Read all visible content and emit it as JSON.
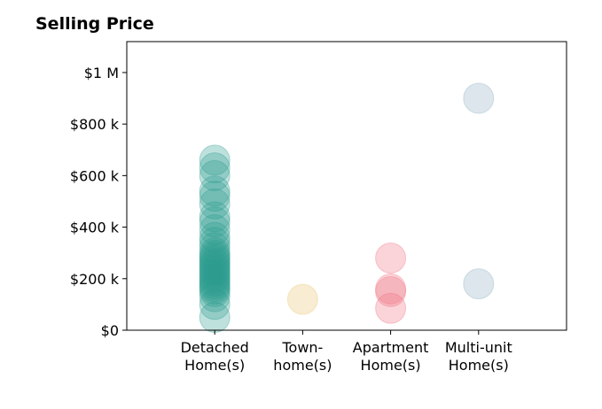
{
  "chart_data": {
    "type": "scatter",
    "title": "Selling Price",
    "xlabel": "",
    "ylabel": "",
    "categories": [
      [
        "Detached",
        "Home(s)"
      ],
      [
        "Town-",
        "home(s)"
      ],
      [
        "Apartment",
        "Home(s)"
      ],
      [
        "Multi-unit",
        "Home(s)"
      ]
    ],
    "y_ticks": [
      {
        "value": 0,
        "label": "$0"
      },
      {
        "value": 200000,
        "label": "$200 k"
      },
      {
        "value": 400000,
        "label": "$400 k"
      },
      {
        "value": 600000,
        "label": "$600 k"
      },
      {
        "value": 800000,
        "label": "$800 k"
      },
      {
        "value": 1000000,
        "label": "$1 M"
      }
    ],
    "ylim": [
      0,
      1120000
    ],
    "xlim": [
      -1,
      4
    ],
    "grid": false,
    "colors": [
      "#2a9d8f",
      "#e9c46a",
      "#f07080",
      "#8aabbf"
    ],
    "series": [
      {
        "category_index": 0,
        "values": [
          50000,
          100000,
          130000,
          150000,
          160000,
          170000,
          180000,
          190000,
          200000,
          210000,
          220000,
          230000,
          240000,
          250000,
          260000,
          270000,
          280000,
          290000,
          300000,
          320000,
          340000,
          360000,
          390000,
          420000,
          440000,
          490000,
          520000,
          540000,
          600000,
          630000,
          660000
        ]
      },
      {
        "category_index": 1,
        "values": [
          120000
        ]
      },
      {
        "category_index": 2,
        "values": [
          85000,
          150000,
          160000,
          280000
        ]
      },
      {
        "category_index": 3,
        "values": [
          180000,
          900000
        ]
      }
    ]
  }
}
